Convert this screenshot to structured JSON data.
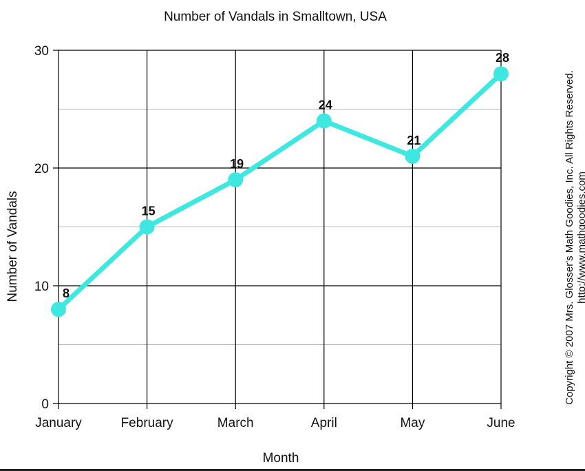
{
  "chart_data": {
    "type": "line",
    "title": "Number of Vandals in Smalltown, USA",
    "xlabel": "Month",
    "ylabel": "Number of  Vandals",
    "categories": [
      "January",
      "February",
      "March",
      "April",
      "May",
      "June"
    ],
    "series": [
      {
        "values": [
          8,
          15,
          19,
          24,
          21,
          28
        ]
      }
    ],
    "data_labels": [
      "8",
      "15",
      "19",
      "24",
      "21",
      "28"
    ],
    "ylim": [
      0,
      30
    ],
    "yticks": [
      0,
      10,
      20,
      30
    ],
    "ytick_labels": [
      "0",
      "10",
      "20",
      "30"
    ],
    "minor_grid_values": [
      5,
      15,
      25
    ],
    "grid": true,
    "line_color": "#3ee8e0",
    "major_grid_color": "#000000",
    "minor_grid_color": "#b5b5b5"
  },
  "copyright": {
    "line1": "Copyright © 2007 Mrs. Glosser's Math Goodies, Inc. All Rights Reserved.",
    "line2": "http://www.mathgoodies.com"
  }
}
